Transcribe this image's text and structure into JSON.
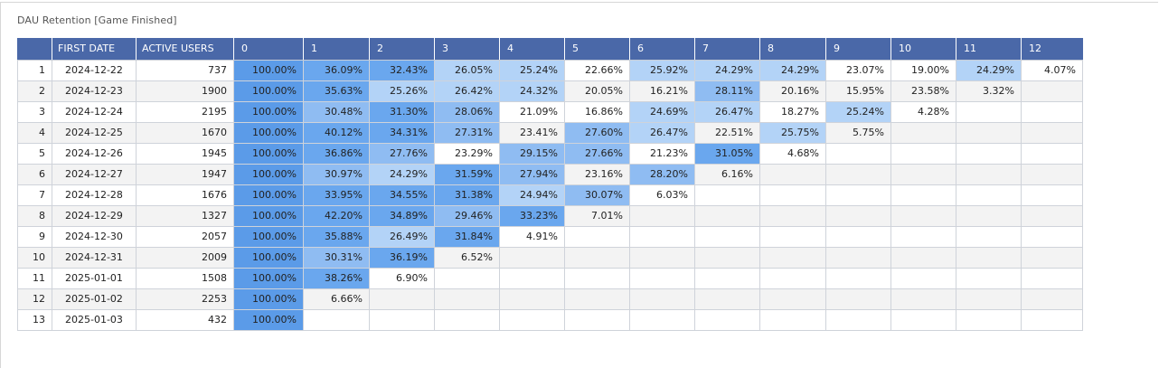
{
  "panel": {
    "title": "DAU Retention [Game Finished]"
  },
  "table": {
    "headers": [
      "",
      "FIRST DATE",
      "ACTIVE USERS",
      "0",
      "1",
      "2",
      "3",
      "4",
      "5",
      "6",
      "7",
      "8",
      "9",
      "10",
      "11",
      "12"
    ],
    "rows": [
      {
        "index": "1",
        "date": "2024-12-22",
        "users": "737",
        "values": [
          "100.00%",
          "36.09%",
          "32.43%",
          "26.05%",
          "25.24%",
          "22.66%",
          "25.92%",
          "24.29%",
          "24.29%",
          "23.07%",
          "19.00%",
          "24.29%",
          "4.07%"
        ]
      },
      {
        "index": "2",
        "date": "2024-12-23",
        "users": "1900",
        "values": [
          "100.00%",
          "35.63%",
          "25.26%",
          "26.42%",
          "24.32%",
          "20.05%",
          "16.21%",
          "28.11%",
          "20.16%",
          "15.95%",
          "23.58%",
          "3.32%"
        ]
      },
      {
        "index": "3",
        "date": "2024-12-24",
        "users": "2195",
        "values": [
          "100.00%",
          "30.48%",
          "31.30%",
          "28.06%",
          "21.09%",
          "16.86%",
          "24.69%",
          "26.47%",
          "18.27%",
          "25.24%",
          "4.28%"
        ]
      },
      {
        "index": "4",
        "date": "2024-12-25",
        "users": "1670",
        "values": [
          "100.00%",
          "40.12%",
          "34.31%",
          "27.31%",
          "23.41%",
          "27.60%",
          "26.47%",
          "22.51%",
          "25.75%",
          "5.75%"
        ]
      },
      {
        "index": "5",
        "date": "2024-12-26",
        "users": "1945",
        "values": [
          "100.00%",
          "36.86%",
          "27.76%",
          "23.29%",
          "29.15%",
          "27.66%",
          "21.23%",
          "31.05%",
          "4.68%"
        ]
      },
      {
        "index": "6",
        "date": "2024-12-27",
        "users": "1947",
        "values": [
          "100.00%",
          "30.97%",
          "24.29%",
          "31.59%",
          "27.94%",
          "23.16%",
          "28.20%",
          "6.16%"
        ]
      },
      {
        "index": "7",
        "date": "2024-12-28",
        "users": "1676",
        "values": [
          "100.00%",
          "33.95%",
          "34.55%",
          "31.38%",
          "24.94%",
          "30.07%",
          "6.03%"
        ]
      },
      {
        "index": "8",
        "date": "2024-12-29",
        "users": "1327",
        "values": [
          "100.00%",
          "42.20%",
          "34.89%",
          "29.46%",
          "33.23%",
          "7.01%"
        ]
      },
      {
        "index": "9",
        "date": "2024-12-30",
        "users": "2057",
        "values": [
          "100.00%",
          "35.88%",
          "26.49%",
          "31.84%",
          "4.91%"
        ]
      },
      {
        "index": "10",
        "date": "2024-12-31",
        "users": "2009",
        "values": [
          "100.00%",
          "30.31%",
          "36.19%",
          "6.52%"
        ]
      },
      {
        "index": "11",
        "date": "2025-01-01",
        "users": "1508",
        "values": [
          "100.00%",
          "38.26%",
          "6.90%"
        ]
      },
      {
        "index": "12",
        "date": "2025-01-02",
        "users": "2253",
        "values": [
          "100.00%",
          "6.66%"
        ]
      },
      {
        "index": "13",
        "date": "2025-01-03",
        "users": "432",
        "values": [
          "100.00%"
        ]
      }
    ]
  },
  "colors": {
    "header_bg": "#4a68a8",
    "day0": "#5b9be8",
    "strong": "#6aa7ee",
    "mid": "#8fbcf2",
    "light": "#b3d3f7",
    "none": "transparent"
  }
}
